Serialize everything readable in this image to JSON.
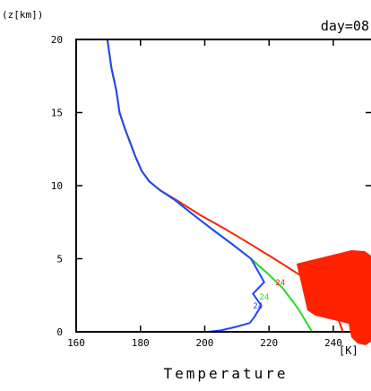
{
  "chart_data": {
    "type": "line",
    "title": "day=08",
    "xlabel": "Temperature",
    "ylabel": "(z[km])",
    "xunit": "[K]",
    "xlim": [
      160,
      252
    ],
    "ylim": [
      0,
      20
    ],
    "xticks": [
      160,
      180,
      200,
      220,
      240
    ],
    "yticks": [
      0,
      5,
      10,
      15,
      20
    ],
    "grid": false,
    "annotations": [
      {
        "text": "24",
        "series": "red",
        "x": 222,
        "y": 3.2
      },
      {
        "text": "24",
        "series": "green",
        "x": 217,
        "y": 2.2
      },
      {
        "text": "24",
        "series": "blue",
        "x": 215,
        "y": 1.6
      }
    ],
    "series": [
      {
        "color": "#ff2200",
        "x": [
          169.7,
          171,
          172.5,
          173.5,
          175,
          176.7,
          178.4,
          180.4,
          182.7,
          186,
          191.3,
          198.5,
          206.6,
          214.2,
          221.6,
          228.8,
          235.5,
          239.6,
          243
        ],
        "y": [
          20,
          18,
          16.5,
          15,
          14,
          13,
          12,
          11,
          10.3,
          9.7,
          9,
          8,
          7,
          6,
          5,
          4,
          3,
          2,
          0
        ]
      },
      {
        "color": "#22dd22",
        "x": [
          169.7,
          171,
          172.5,
          173.5,
          175,
          176.7,
          178.4,
          180.4,
          182.7,
          186,
          190.8,
          196.5,
          202.4,
          208.5,
          214.4,
          219.5,
          224.2,
          229,
          232.6,
          233.4
        ],
        "y": [
          20,
          18,
          16.5,
          15,
          14,
          13,
          12,
          11,
          10.3,
          9.7,
          9,
          8,
          7,
          6,
          5,
          4,
          3,
          1.6,
          0.3,
          0
        ]
      },
      {
        "color": "#2244ff",
        "x": [
          169.7,
          171,
          172.5,
          173.5,
          175,
          176.7,
          178.4,
          180.4,
          182.7,
          186,
          190.8,
          196.5,
          202.4,
          208.5,
          214.4,
          218.5,
          215,
          217.6,
          215.4,
          214,
          209,
          205,
          201
        ],
        "y": [
          20,
          18,
          16.5,
          15,
          14,
          13,
          12,
          11,
          10.3,
          9.7,
          9,
          8,
          7,
          6,
          5,
          3.4,
          2.6,
          1.8,
          1,
          0.6,
          0.3,
          0.1,
          0
        ]
      }
    ]
  }
}
